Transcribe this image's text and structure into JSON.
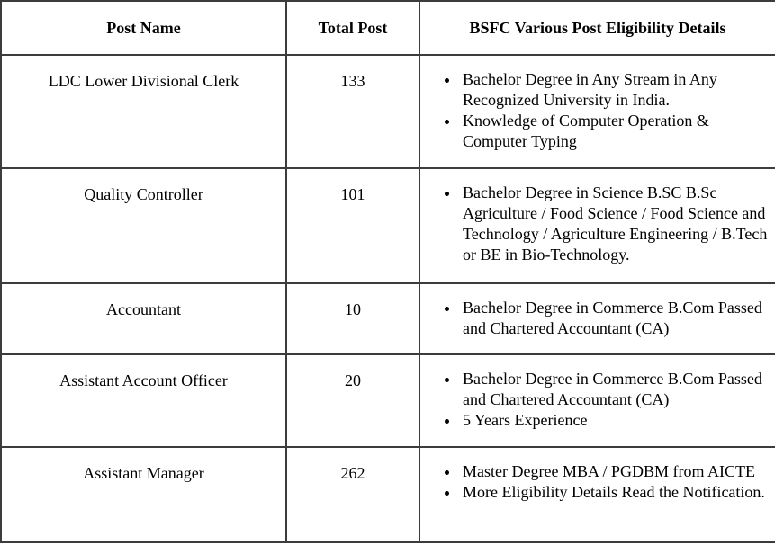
{
  "page": {
    "background": "#ffffff"
  },
  "colors": {
    "border": "#3c3c3c",
    "text": "#000000",
    "background": "#ffffff"
  },
  "table": {
    "headers": {
      "post_name": "Post Name",
      "total_post": "Total Post",
      "details": "BSFC Various Post Eligibility Details"
    },
    "rows": [
      {
        "post_name": "LDC Lower Divisional Clerk",
        "total_post": "133",
        "eligibility": [
          "Bachelor Degree in Any Stream in Any Recognized University in India.",
          "Knowledge of Computer Operation & Computer Typing"
        ]
      },
      {
        "post_name": "Quality Controller",
        "total_post": "101",
        "eligibility": [
          "Bachelor Degree in Science B.SC B.Sc Agriculture / Food Science / Food Science and Technology / Agriculture Engineering / B.Tech or BE in Bio-Technology."
        ]
      },
      {
        "post_name": "Accountant",
        "total_post": "10",
        "eligibility": [
          "Bachelor Degree in Commerce B.Com Passed and Chartered Accountant (CA)"
        ]
      },
      {
        "post_name": "Assistant Account Officer",
        "total_post": "20",
        "eligibility": [
          "Bachelor Degree in Commerce B.Com Passed and Chartered Accountant (CA)",
          "5 Years Experience"
        ]
      },
      {
        "post_name": "Assistant Manager",
        "total_post": "262",
        "eligibility": [
          "Master Degree MBA / PGDBM from AICTE",
          "More Eligibility Details Read the Notification."
        ]
      }
    ]
  }
}
